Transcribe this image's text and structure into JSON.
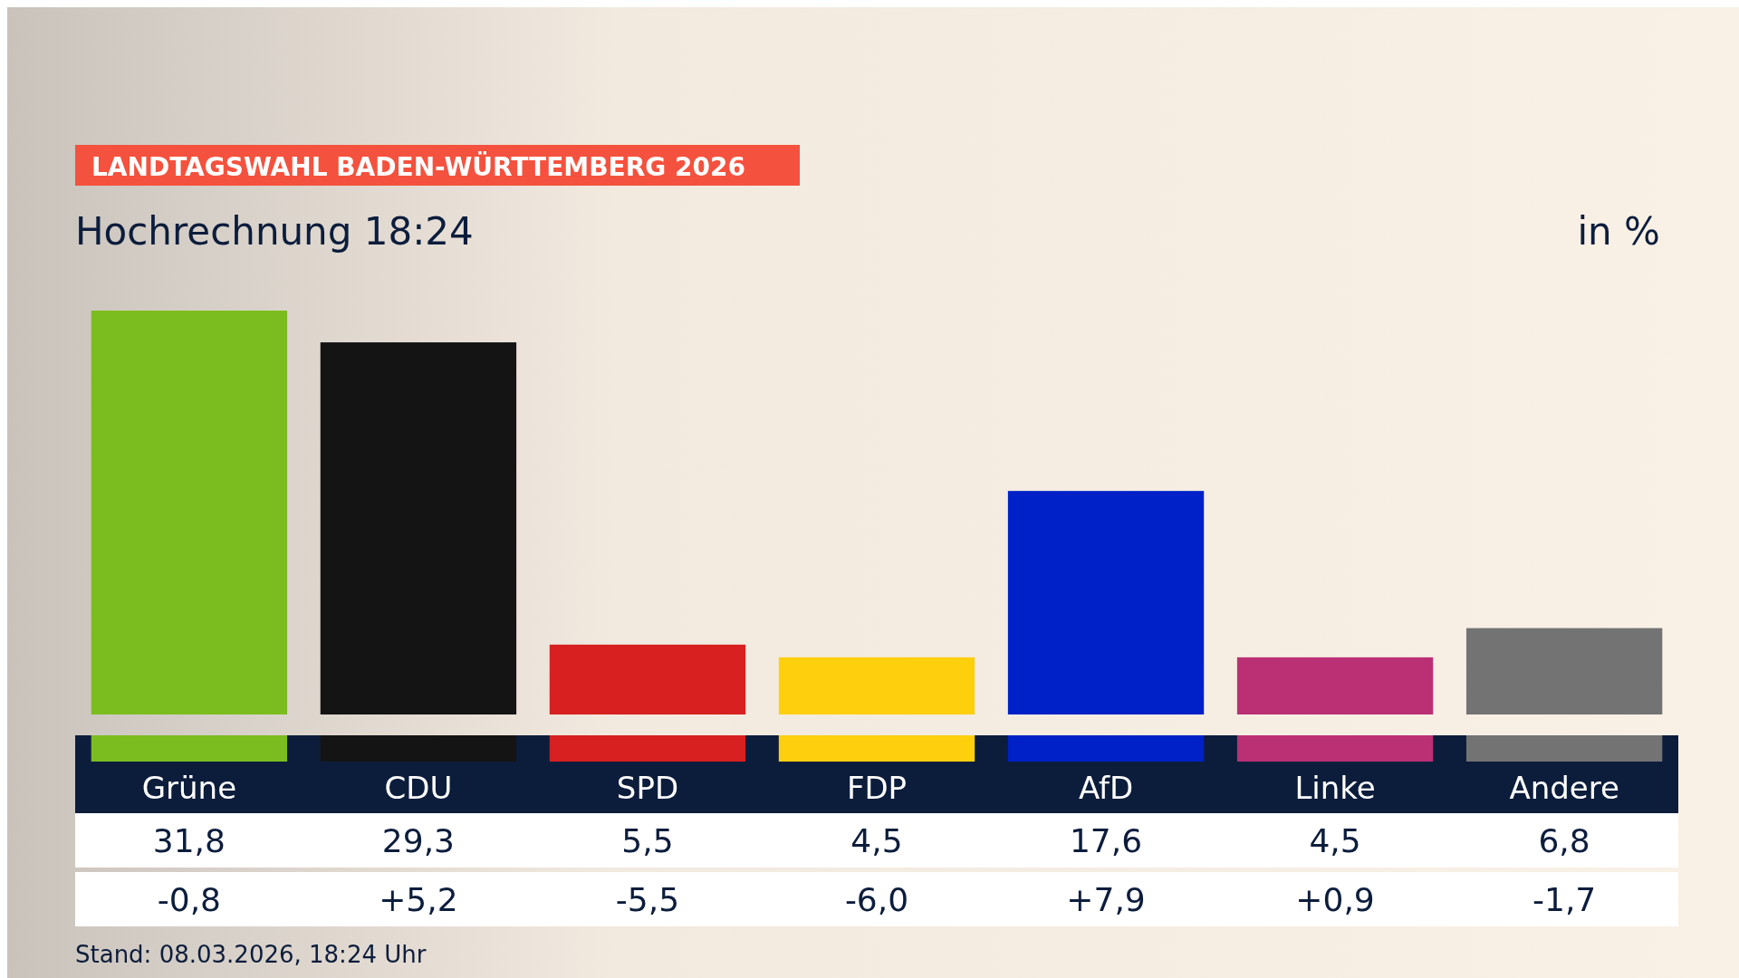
{
  "chart_data": {
    "type": "bar",
    "title": "LANDTAGSWAHL BADEN-WÜRTTEMBERG 2026",
    "subtitle": "Hochrechnung 18:24",
    "ylabel": "in %",
    "categories": [
      "Grüne",
      "CDU",
      "SPD",
      "FDP",
      "AfD",
      "Linke",
      "Andere"
    ],
    "values": [
      31.8,
      29.3,
      5.5,
      4.5,
      17.6,
      4.5,
      6.8
    ],
    "value_labels": [
      "31,8",
      "29,3",
      "5,5",
      "4,5",
      "17,6",
      "4,5",
      "6,8"
    ],
    "colors": [
      "#7bbd1e",
      "#141414",
      "#d7201f",
      "#fecf0c",
      "#0021c7",
      "#bb3075",
      "#737373"
    ],
    "annotations": [
      "-0,8",
      "+5,2",
      "-5,5",
      "-6,0",
      "+7,9",
      "+0,9",
      "-1,7",
      "Stand: 08.03.2026, 18:24 Uhr"
    ]
  }
}
